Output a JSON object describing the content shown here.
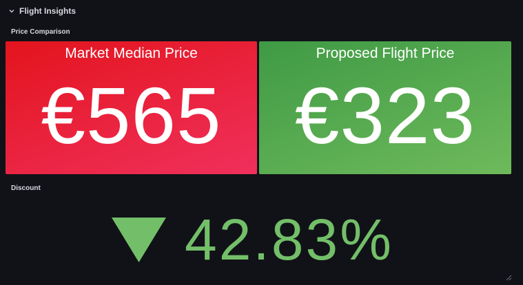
{
  "row": {
    "title": "Flight Insights"
  },
  "panels": [
    {
      "title": "Price Comparison",
      "stats": [
        {
          "name": "Market Median Price",
          "value": "€565"
        },
        {
          "name": "Proposed Flight Price",
          "value": "€323"
        }
      ]
    },
    {
      "title": "Discount",
      "value": "42.83%"
    }
  ]
}
